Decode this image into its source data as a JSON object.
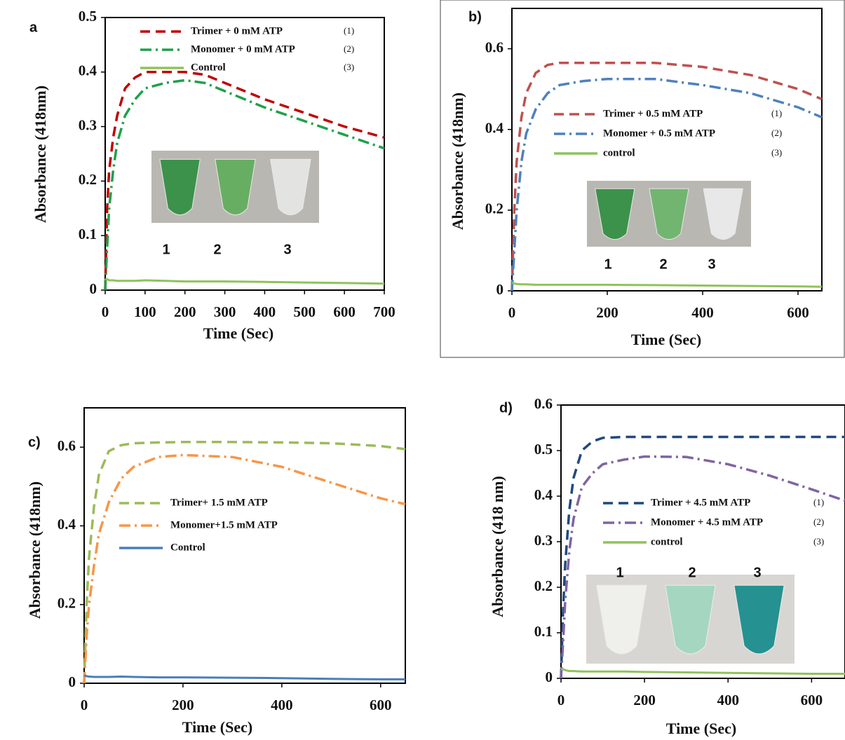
{
  "chart_data": [
    {
      "type": "line",
      "panel_label": "a",
      "xlabel": "Time  (Sec)",
      "ylabel": "Absorbance  (418nm)",
      "xlim": [
        0,
        700
      ],
      "ylim": [
        0,
        0.5
      ],
      "xticks": [
        0,
        100,
        200,
        300,
        400,
        500,
        600,
        700
      ],
      "yticks": [
        0,
        0.1,
        0.2,
        0.3,
        0.4,
        0.5
      ],
      "x": [
        0,
        5,
        10,
        20,
        30,
        50,
        75,
        100,
        150,
        200,
        250,
        300,
        400,
        500,
        600,
        700
      ],
      "series": [
        {
          "name": "Trimer + 0 mM ATP",
          "color": "#c00000",
          "style": "dash",
          "values": [
            0,
            0.15,
            0.22,
            0.28,
            0.32,
            0.37,
            0.39,
            0.4,
            0.4,
            0.4,
            0.395,
            0.38,
            0.35,
            0.325,
            0.3,
            0.28
          ]
        },
        {
          "name": "Monomer + 0 mM ATP",
          "color": "#1fa04a",
          "style": "dashdot",
          "values": [
            0,
            0.08,
            0.15,
            0.22,
            0.27,
            0.32,
            0.35,
            0.37,
            0.38,
            0.385,
            0.38,
            0.365,
            0.335,
            0.31,
            0.285,
            0.26
          ]
        },
        {
          "name": "Control",
          "color": "#8fc35a",
          "style": "solid",
          "values": [
            0.02,
            0.02,
            0.018,
            0.018,
            0.017,
            0.017,
            0.017,
            0.018,
            0.017,
            0.016,
            0.016,
            0.016,
            0.015,
            0.014,
            0.013,
            0.012
          ]
        }
      ],
      "legend_numbers": [
        "(1)",
        "(2)",
        "(3)"
      ],
      "photo_labels": [
        "1",
        "2",
        "3"
      ]
    },
    {
      "type": "line",
      "panel_label": "b)",
      "xlabel": "Time (Sec)",
      "ylabel": "Absorbance (418nm)",
      "xlim": [
        0,
        650
      ],
      "ylim": [
        0,
        0.7
      ],
      "xticks": [
        0,
        200,
        400,
        600
      ],
      "yticks": [
        0,
        0.2,
        0.4,
        0.6
      ],
      "x": [
        0,
        5,
        10,
        20,
        30,
        50,
        75,
        100,
        150,
        200,
        300,
        400,
        500,
        600,
        650
      ],
      "series": [
        {
          "name": "Trimer + 0.5 mM ATP",
          "color": "#c0504d",
          "style": "dash",
          "values": [
            0,
            0.2,
            0.32,
            0.43,
            0.49,
            0.54,
            0.56,
            0.565,
            0.565,
            0.565,
            0.565,
            0.555,
            0.535,
            0.5,
            0.475
          ]
        },
        {
          "name": "Monomer + 0.5 mM ATP",
          "color": "#4f81bd",
          "style": "dashdot",
          "values": [
            0,
            0.1,
            0.2,
            0.32,
            0.39,
            0.45,
            0.49,
            0.51,
            0.52,
            0.525,
            0.525,
            0.51,
            0.49,
            0.455,
            0.43
          ]
        },
        {
          "name": "control",
          "color": "#8fc35a",
          "style": "solid",
          "values": [
            0.02,
            0.018,
            0.017,
            0.016,
            0.016,
            0.015,
            0.015,
            0.015,
            0.015,
            0.015,
            0.014,
            0.013,
            0.012,
            0.011,
            0.01
          ]
        }
      ],
      "legend_numbers": [
        "(1)",
        "(2)",
        "(3)"
      ],
      "photo_labels": [
        "1",
        "2",
        "3"
      ]
    },
    {
      "type": "line",
      "panel_label": "c)",
      "xlabel": "Time  (Sec)",
      "ylabel": "Absorbance  (418nm)",
      "xlim": [
        0,
        650
      ],
      "ylim": [
        0,
        0.7
      ],
      "xticks": [
        0,
        200,
        400,
        600
      ],
      "yticks": [
        0,
        0.2,
        0.4,
        0.6
      ],
      "x": [
        0,
        5,
        10,
        20,
        30,
        50,
        75,
        100,
        150,
        200,
        300,
        400,
        500,
        600,
        650
      ],
      "series": [
        {
          "name": "Trimer+ 1.5 mM ATP",
          "color": "#9bbb59",
          "style": "dash",
          "values": [
            0,
            0.2,
            0.32,
            0.45,
            0.53,
            0.59,
            0.605,
            0.61,
            0.612,
            0.613,
            0.613,
            0.612,
            0.61,
            0.603,
            0.595
          ]
        },
        {
          "name": "Monomer+1.5 mM ATP",
          "color": "#f79646",
          "style": "dashdot",
          "values": [
            0,
            0.12,
            0.2,
            0.3,
            0.38,
            0.46,
            0.52,
            0.55,
            0.575,
            0.58,
            0.575,
            0.55,
            0.51,
            0.47,
            0.455
          ]
        },
        {
          "name": "Control",
          "color": "#4a7ebb",
          "style": "solid",
          "values": [
            0.02,
            0.018,
            0.017,
            0.016,
            0.016,
            0.016,
            0.017,
            0.016,
            0.015,
            0.015,
            0.014,
            0.013,
            0.011,
            0.01,
            0.01
          ]
        }
      ]
    },
    {
      "type": "line",
      "panel_label": "d)",
      "xlabel": "Time (Sec)",
      "ylabel": "Absorbance (418 nm)",
      "xlim": [
        0,
        680
      ],
      "ylim": [
        0,
        0.6
      ],
      "xticks": [
        0,
        200,
        400,
        600
      ],
      "yticks": [
        0,
        0.1,
        0.2,
        0.3,
        0.4,
        0.5,
        0.6
      ],
      "x": [
        0,
        5,
        10,
        20,
        30,
        50,
        75,
        100,
        150,
        200,
        300,
        400,
        500,
        600,
        680
      ],
      "series": [
        {
          "name": "Trimer + 4.5 mM ATP",
          "color": "#1f497d",
          "style": "dash",
          "values": [
            0,
            0.15,
            0.25,
            0.37,
            0.44,
            0.5,
            0.52,
            0.528,
            0.53,
            0.53,
            0.53,
            0.53,
            0.53,
            0.53,
            0.53
          ]
        },
        {
          "name": "Monomer + 4.5 mM ATP",
          "color": "#8064a2",
          "style": "dashdot",
          "values": [
            0,
            0.08,
            0.17,
            0.28,
            0.35,
            0.42,
            0.45,
            0.47,
            0.48,
            0.487,
            0.486,
            0.47,
            0.445,
            0.415,
            0.39
          ]
        },
        {
          "name": "control",
          "color": "#8fc35a",
          "style": "solid",
          "values": [
            0.02,
            0.02,
            0.018,
            0.016,
            0.016,
            0.015,
            0.015,
            0.015,
            0.015,
            0.014,
            0.013,
            0.012,
            0.011,
            0.01,
            0.01
          ]
        }
      ],
      "legend_numbers": [
        "(1)",
        "(2)",
        "(3)"
      ],
      "photo_labels": [
        "1",
        "2",
        "3"
      ]
    }
  ]
}
